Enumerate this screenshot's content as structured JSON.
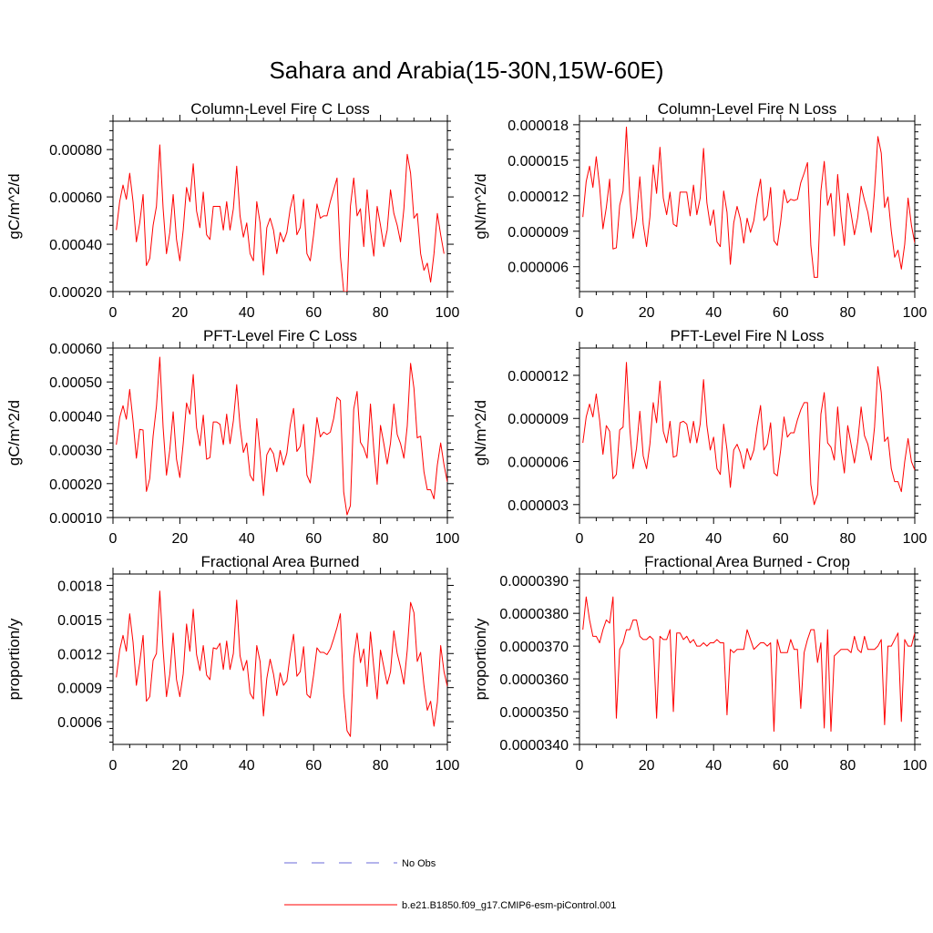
{
  "main_title": "Sahara and Arabia(15-30N,15W-60E)",
  "colors": {
    "model": "#ff0000",
    "obs": "#6a6ad8",
    "axis": "#000000"
  },
  "legend": [
    {
      "label": "No Obs",
      "style": "dashed",
      "color": "#6a6ad8"
    },
    {
      "label": "b.e21.B1850.f09_g17.CMIP6-esm-piControl.001",
      "style": "solid",
      "color": "#ff0000"
    }
  ],
  "chart_data": [
    {
      "type": "line",
      "title": "Column-Level Fire C Loss",
      "xlabel": "",
      "ylabel": "gC/m^2/d",
      "xlim": [
        0,
        100
      ],
      "ylim": [
        0.0002,
        0.00092
      ],
      "xticks": [
        0,
        20,
        40,
        60,
        80,
        100
      ],
      "xtick_labels": [
        "0",
        "20",
        "40",
        "60",
        "80",
        "100"
      ],
      "yticks": [
        0.0002,
        0.0004,
        0.0006,
        0.0008
      ],
      "ytick_labels": [
        "0.00020",
        "0.00040",
        "0.00060",
        "0.00080"
      ],
      "series": [
        {
          "name": "b.e21.B1850.f09_g17.CMIP6-esm-piControl.001",
          "x_start": 1,
          "values": [
            0.00046,
            0.00058,
            0.00065,
            0.00059,
            0.0007,
            0.00058,
            0.00041,
            0.00049,
            0.00061,
            0.00031,
            0.00034,
            0.00048,
            0.00056,
            0.00082,
            0.00055,
            0.00036,
            0.00045,
            0.00061,
            0.00042,
            0.00033,
            0.00046,
            0.00064,
            0.00058,
            0.00074,
            0.00054,
            0.00047,
            0.00062,
            0.00044,
            0.00042,
            0.00056,
            0.00056,
            0.00056,
            0.00046,
            0.00058,
            0.00046,
            0.00055,
            0.00073,
            0.00052,
            0.00043,
            0.00049,
            0.00036,
            0.00033,
            0.00058,
            0.00049,
            0.00027,
            0.00047,
            0.00051,
            0.00046,
            0.00036,
            0.00045,
            0.00041,
            0.00045,
            0.00055,
            0.00061,
            0.00044,
            0.00047,
            0.00059,
            0.00036,
            0.00033,
            0.00044,
            0.00057,
            0.00051,
            0.00052,
            0.00052,
            0.00058,
            0.00063,
            0.00068,
            0.00035,
            0.0002,
            0.0002,
            0.00056,
            0.00068,
            0.00052,
            0.00055,
            0.00039,
            0.00063,
            0.00046,
            0.00035,
            0.00056,
            0.00048,
            0.00039,
            0.00046,
            0.00063,
            0.00053,
            0.00048,
            0.00041,
            0.00055,
            0.00078,
            0.0007,
            0.00051,
            0.00053,
            0.00036,
            0.00029,
            0.00032,
            0.00024,
            0.00036,
            0.00053,
            0.00044,
            0.00036
          ]
        }
      ]
    },
    {
      "type": "line",
      "title": "Column-Level Fire N Loss",
      "xlabel": "",
      "ylabel": "gN/m^2/d",
      "xlim": [
        0,
        100
      ],
      "ylim": [
        3.9e-06,
        1.83e-05
      ],
      "xticks": [
        0,
        20,
        40,
        60,
        80,
        100
      ],
      "xtick_labels": [
        "0",
        "20",
        "40",
        "60",
        "80",
        "100"
      ],
      "yticks": [
        6e-06,
        9e-06,
        1.2e-05,
        1.5e-05,
        1.8e-05
      ],
      "ytick_labels": [
        "0.000006",
        "0.000009",
        "0.000012",
        "0.000015",
        "0.000018"
      ],
      "series": [
        {
          "name": "b.e21.B1850.f09_g17.CMIP6-esm-piControl.001",
          "x_start": 1,
          "values": [
            1.02e-05,
            1.32e-05,
            1.45e-05,
            1.27e-05,
            1.53e-05,
            1.28e-05,
            9.2e-06,
            1.1e-05,
            1.34e-05,
            7.5e-06,
            7.6e-06,
            1.12e-05,
            1.24e-05,
            1.78e-05,
            1.2e-05,
            8.4e-06,
            1.01e-05,
            1.36e-05,
            9.6e-06,
            7.7e-06,
            1.02e-05,
            1.46e-05,
            1.22e-05,
            1.61e-05,
            1.18e-05,
            1.04e-05,
            1.23e-05,
            9.6e-06,
            9.4e-06,
            1.23e-05,
            1.23e-05,
            1.23e-05,
            1.03e-05,
            1.29e-05,
            1.04e-05,
            1.18e-05,
            1.6e-05,
            1.14e-05,
            9.5e-06,
            1.08e-05,
            8.1e-06,
            7.7e-06,
            1.24e-05,
            1.06e-05,
            6.2e-06,
            9.7e-06,
            1.11e-05,
            1e-05,
            8e-06,
            1.01e-05,
            8.9e-06,
            9.9e-06,
            1.19e-05,
            1.34e-05,
            9.9e-06,
            1.03e-05,
            1.27e-05,
            8.2e-06,
            7.8e-06,
            9.8e-06,
            1.25e-05,
            1.14e-05,
            1.17e-05,
            1.16e-05,
            1.17e-05,
            1.31e-05,
            1.39e-05,
            1.48e-05,
            7.8e-06,
            5.1e-06,
            5.1e-06,
            1.24e-05,
            1.49e-05,
            1.12e-05,
            1.22e-05,
            8.6e-06,
            1.38e-05,
            1.03e-05,
            7.8e-06,
            1.22e-05,
            1.05e-05,
            8.7e-06,
            1.02e-05,
            1.28e-05,
            1.16e-05,
            1.06e-05,
            8.9e-06,
            1.24e-05,
            1.7e-05,
            1.56e-05,
            1.1e-05,
            1.19e-05,
            9e-06,
            6.8e-06,
            7.4e-06,
            5.8e-06,
            7.9e-06,
            1.18e-05,
            9.5e-06,
            8e-06
          ]
        }
      ]
    },
    {
      "type": "line",
      "title": "PFT-Level Fire C Loss",
      "xlabel": "",
      "ylabel": "gC/m^2/d",
      "xlim": [
        0,
        100
      ],
      "ylim": [
        0.0001,
        0.0006
      ],
      "xticks": [
        0,
        20,
        40,
        60,
        80,
        100
      ],
      "xtick_labels": [
        "0",
        "20",
        "40",
        "60",
        "80",
        "100"
      ],
      "yticks": [
        0.0001,
        0.0002,
        0.0003,
        0.0004,
        0.0005,
        0.0006
      ],
      "ytick_labels": [
        "0.00010",
        "0.00020",
        "0.00030",
        "0.00040",
        "0.00050",
        "0.00060"
      ],
      "series": [
        {
          "name": "b.e21.B1850.f09_g17.CMIP6-esm-piControl.001",
          "x_start": 1,
          "values": [
            0.000315,
            0.000395,
            0.00043,
            0.00039,
            0.000478,
            0.000385,
            0.000275,
            0.00036,
            0.000358,
            0.000177,
            0.000215,
            0.00034,
            0.000428,
            0.000573,
            0.000365,
            0.000225,
            0.0003,
            0.000412,
            0.000272,
            0.000218,
            0.000318,
            0.000438,
            0.000405,
            0.000522,
            0.000365,
            0.000312,
            0.000402,
            0.000272,
            0.000277,
            0.000382,
            0.000382,
            0.000375,
            0.000315,
            0.000405,
            0.000318,
            0.000385,
            0.000492,
            0.00037,
            0.000292,
            0.00032,
            0.000225,
            0.000208,
            0.000392,
            0.000292,
            0.000165,
            0.000285,
            0.000305,
            0.000288,
            0.000235,
            0.000298,
            0.000255,
            0.00029,
            0.000372,
            0.000422,
            0.000295,
            0.00031,
            0.000375,
            0.000225,
            0.000202,
            0.00029,
            0.000395,
            0.000338,
            0.000352,
            0.000345,
            0.000352,
            0.000392,
            0.000455,
            0.000445,
            0.000175,
            0.000108,
            0.000135,
            0.00042,
            0.000472,
            0.000322,
            0.000305,
            0.000275,
            0.000435,
            0.000302,
            0.000198,
            0.000372,
            0.000318,
            0.000258,
            0.00032,
            0.000435,
            0.000345,
            0.000318,
            0.000275,
            0.00037,
            0.000555,
            0.000482,
            0.000335,
            0.00034,
            0.000235,
            0.000182,
            0.000182,
            0.000155,
            0.000255,
            0.00032,
            0.000255,
            0.000205
          ]
        }
      ]
    },
    {
      "type": "line",
      "title": "PFT-Level Fire N Loss",
      "xlabel": "",
      "ylabel": "gN/m^2/d",
      "xlim": [
        0,
        100
      ],
      "ylim": [
        2.1e-06,
        1.39e-05
      ],
      "xticks": [
        0,
        20,
        40,
        60,
        80,
        100
      ],
      "xtick_labels": [
        "0",
        "20",
        "40",
        "60",
        "80",
        "100"
      ],
      "yticks": [
        3e-06,
        6e-06,
        9e-06,
        1.2e-05
      ],
      "ytick_labels": [
        "0.000003",
        "0.000006",
        "0.000009",
        "0.000012"
      ],
      "series": [
        {
          "name": "b.e21.B1850.f09_g17.CMIP6-esm-piControl.001",
          "x_start": 1,
          "values": [
            7.3e-06,
            9.1e-06,
            1e-05,
            9.1e-06,
            1.07e-05,
            8.9e-06,
            6.5e-06,
            8.5e-06,
            8.1e-06,
            4.8e-06,
            5.1e-06,
            8.2e-06,
            8.4e-06,
            1.29e-05,
            8.3e-06,
            5.5e-06,
            6.9e-06,
            9.5e-06,
            6.4e-06,
            5.5e-06,
            7.2e-06,
            1.01e-05,
            8.7e-06,
            1.16e-05,
            8.1e-06,
            7.3e-06,
            8.8e-06,
            6.3e-06,
            6.4e-06,
            8.7e-06,
            8.8e-06,
            8.6e-06,
            7.3e-06,
            8.8e-06,
            7.3e-06,
            8.6e-06,
            1.17e-05,
            8.5e-06,
            6.8e-06,
            7.7e-06,
            5.5e-06,
            5.1e-06,
            8.6e-06,
            6.8e-06,
            4.2e-06,
            6.8e-06,
            7.2e-06,
            6.6e-06,
            5.5e-06,
            6.9e-06,
            6.1e-06,
            6.8e-06,
            8.5e-06,
            9.9e-06,
            6.8e-06,
            7.2e-06,
            8.7e-06,
            5.2e-06,
            5e-06,
            6.8e-06,
            9.1e-06,
            7.7e-06,
            8e-06,
            8e-06,
            8.9e-06,
            9.6e-06,
            1.01e-05,
            1.01e-05,
            4.4e-06,
            3e-06,
            3.7e-06,
            9.3e-06,
            1.08e-05,
            7.3e-06,
            7e-06,
            6.1e-06,
            9.8e-06,
            6.9e-06,
            5.2e-06,
            8.5e-06,
            7.2e-06,
            5.9e-06,
            7.4e-06,
            9.8e-06,
            7.8e-06,
            7.2e-06,
            6.1e-06,
            8.4e-06,
            1.26e-05,
            1.08e-05,
            7.4e-06,
            7.7e-06,
            5.5e-06,
            4.6e-06,
            4.6e-06,
            3.9e-06,
            6e-06,
            7.6e-06,
            6e-06,
            5.4e-06
          ]
        }
      ]
    },
    {
      "type": "line",
      "title": "Fractional Area Burned",
      "xlabel": "",
      "ylabel": "proportion/y",
      "xlim": [
        0,
        100
      ],
      "ylim": [
        0.0004,
        0.0019
      ],
      "xticks": [
        0,
        20,
        40,
        60,
        80,
        100
      ],
      "xtick_labels": [
        "0",
        "20",
        "40",
        "60",
        "80",
        "100"
      ],
      "yticks": [
        0.0006,
        0.0009,
        0.0012,
        0.0015,
        0.0018
      ],
      "ytick_labels": [
        "0.0006",
        "0.0009",
        "0.0012",
        "0.0015",
        "0.0018"
      ],
      "series": [
        {
          "name": "b.e21.B1850.f09_g17.CMIP6-esm-piControl.001",
          "x_start": 1,
          "values": [
            0.00099,
            0.00123,
            0.00136,
            0.00122,
            0.00155,
            0.0013,
            0.00092,
            0.00112,
            0.00136,
            0.00078,
            0.00082,
            0.00114,
            0.0012,
            0.00175,
            0.00123,
            0.00082,
            0.00102,
            0.00138,
            0.00097,
            0.00082,
            0.00102,
            0.00146,
            0.00122,
            0.00159,
            0.00119,
            0.00105,
            0.00127,
            0.00101,
            0.00097,
            0.00125,
            0.00124,
            0.00129,
            0.00106,
            0.00131,
            0.00106,
            0.0012,
            0.00167,
            0.00118,
            0.00105,
            0.00114,
            0.00085,
            0.0008,
            0.00127,
            0.00113,
            0.00065,
            0.00098,
            0.00115,
            0.00102,
            0.00083,
            0.00103,
            0.00092,
            0.00096,
            0.00119,
            0.00137,
            0.001,
            0.00104,
            0.00126,
            0.00084,
            0.00081,
            0.00101,
            0.00125,
            0.00121,
            0.00121,
            0.00119,
            0.00124,
            0.00133,
            0.00143,
            0.00155,
            0.00085,
            0.00052,
            0.00047,
            0.00116,
            0.00138,
            0.00112,
            0.00124,
            0.00091,
            0.00139,
            0.00108,
            0.0008,
            0.00123,
            0.00108,
            0.00093,
            0.00104,
            0.0014,
            0.0012,
            0.00108,
            0.00093,
            0.00123,
            0.00165,
            0.00156,
            0.00113,
            0.00121,
            0.00092,
            0.0007,
            0.00078,
            0.00056,
            0.00077,
            0.00127,
            0.00104,
            0.00091
          ]
        }
      ]
    },
    {
      "type": "line",
      "title": "Fractional Area Burned - Crop",
      "xlabel": "",
      "ylabel": "proportion/y",
      "xlim": [
        0,
        100
      ],
      "ylim": [
        3.4e-05,
        3.92e-05
      ],
      "xticks": [
        0,
        20,
        40,
        60,
        80,
        100
      ],
      "xtick_labels": [
        "0",
        "20",
        "40",
        "60",
        "80",
        "100"
      ],
      "yticks": [
        3.4e-05,
        3.5e-05,
        3.6e-05,
        3.7e-05,
        3.8e-05,
        3.9e-05
      ],
      "ytick_labels": [
        "0.0000340",
        "0.0000350",
        "0.0000360",
        "0.0000370",
        "0.0000380",
        "0.0000390"
      ],
      "series": [
        {
          "name": "b.e21.B1850.f09_g17.CMIP6-esm-piControl.001",
          "x_start": 1,
          "values": [
            3.75e-05,
            3.85e-05,
            3.78e-05,
            3.73e-05,
            3.73e-05,
            3.71e-05,
            3.75e-05,
            3.78e-05,
            3.77e-05,
            3.85e-05,
            3.48e-05,
            3.69e-05,
            3.71e-05,
            3.75e-05,
            3.75e-05,
            3.78e-05,
            3.78e-05,
            3.73e-05,
            3.72e-05,
            3.72e-05,
            3.73e-05,
            3.72e-05,
            3.48e-05,
            3.73e-05,
            3.72e-05,
            3.72e-05,
            3.75e-05,
            3.5e-05,
            3.74e-05,
            3.74e-05,
            3.72e-05,
            3.73e-05,
            3.71e-05,
            3.72e-05,
            3.7e-05,
            3.7e-05,
            3.71e-05,
            3.7e-05,
            3.71e-05,
            3.71e-05,
            3.72e-05,
            3.71e-05,
            3.71e-05,
            3.49e-05,
            3.69e-05,
            3.68e-05,
            3.69e-05,
            3.69e-05,
            3.69e-05,
            3.75e-05,
            3.72e-05,
            3.69e-05,
            3.7e-05,
            3.71e-05,
            3.71e-05,
            3.7e-05,
            3.71e-05,
            3.44e-05,
            3.72e-05,
            3.68e-05,
            3.68e-05,
            3.68e-05,
            3.72e-05,
            3.69e-05,
            3.69e-05,
            3.51e-05,
            3.68e-05,
            3.72e-05,
            3.75e-05,
            3.75e-05,
            3.65e-05,
            3.71e-05,
            3.45e-05,
            3.75e-05,
            3.44e-05,
            3.67e-05,
            3.68e-05,
            3.69e-05,
            3.69e-05,
            3.69e-05,
            3.68e-05,
            3.73e-05,
            3.69e-05,
            3.68e-05,
            3.73e-05,
            3.69e-05,
            3.69e-05,
            3.69e-05,
            3.7e-05,
            3.72e-05,
            3.46e-05,
            3.7e-05,
            3.7e-05,
            3.72e-05,
            3.74e-05,
            3.47e-05,
            3.72e-05,
            3.7e-05,
            3.7e-05,
            3.74e-05
          ]
        }
      ]
    }
  ]
}
